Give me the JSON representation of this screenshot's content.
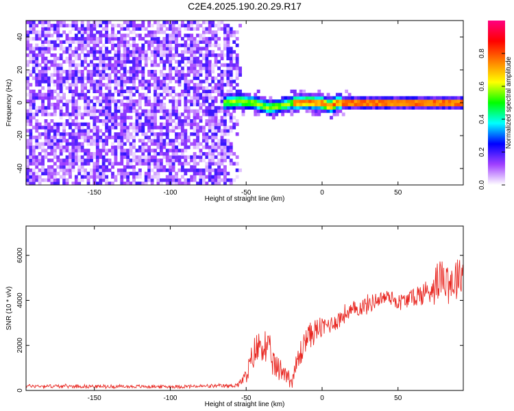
{
  "figure": {
    "title": "C2E4.2025.190.20.29.R17"
  },
  "chart_data": [
    {
      "type": "heatmap",
      "title": "C2E4.2025.190.20.29.R17",
      "xlabel": "Height of straight line (km)",
      "ylabel": "Frequency (Hz)",
      "xlim": [
        -195,
        93
      ],
      "ylim": [
        -50,
        50
      ],
      "x_ticks": [
        -150,
        -100,
        -50,
        0,
        50
      ],
      "y_ticks": [
        -40,
        -20,
        0,
        20,
        40
      ],
      "colorbar": {
        "label": "Normalized spectral amplitude",
        "range": [
          0,
          1
        ],
        "ticks": [
          0.0,
          0.2,
          0.4,
          0.6,
          0.8
        ],
        "tick_labels": [
          "0.0",
          "0.2",
          "0.4",
          "0.6",
          "0.8"
        ],
        "colors": [
          "#ffffff",
          "#a040ff",
          "#0000ff",
          "#00ffff",
          "#00ff00",
          "#ffff00",
          "#ff8000",
          "#ff0000",
          "#ff0080"
        ]
      },
      "regions": [
        {
          "description": "noise",
          "x_range": [
            -195,
            -55
          ],
          "freq_range": [
            -50,
            50
          ],
          "amplitude_range": [
            0.0,
            0.2
          ]
        },
        {
          "description": "signal",
          "x_range": [
            -65,
            93
          ],
          "freq_center": 0,
          "amplitude_range": [
            0.2,
            1.0
          ]
        }
      ],
      "signal_ridge": {
        "x": [
          -65,
          -55,
          -45,
          -35,
          -28,
          -20,
          -10,
          0,
          5,
          10,
          20,
          40,
          60,
          80,
          93
        ],
        "freq": [
          0,
          1,
          0,
          -3,
          -2,
          0,
          0.5,
          0,
          -2,
          0,
          0,
          0,
          0,
          0,
          0
        ]
      }
    },
    {
      "type": "line",
      "xlabel": "Height of straight line (km)",
      "ylabel": "SNR (10 * v/v)",
      "xlim": [
        -195,
        93
      ],
      "ylim": [
        0,
        7300
      ],
      "x_ticks": [
        -150,
        -100,
        -50,
        0,
        50
      ],
      "y_ticks": [
        0,
        2000,
        4000,
        6000
      ],
      "series": [
        {
          "color": "#e8251f",
          "x": [
            -195,
            -150,
            -100,
            -60,
            -55,
            -50,
            -45,
            -40,
            -35,
            -30,
            -25,
            -20,
            -15,
            -10,
            -5,
            0,
            5,
            10,
            15,
            20,
            25,
            30,
            35,
            40,
            45,
            50,
            55,
            60,
            65,
            70,
            75,
            80,
            85,
            93
          ],
          "y": [
            200,
            180,
            170,
            200,
            280,
            600,
            1600,
            2100,
            1700,
            900,
            900,
            400,
            1500,
            2400,
            2600,
            2800,
            2950,
            3100,
            3400,
            3500,
            3700,
            3800,
            4000,
            4100,
            4200,
            3900,
            4000,
            4150,
            4250,
            4400,
            4800,
            5200,
            4800,
            5300
          ],
          "spread": [
            100,
            90,
            90,
            110,
            150,
            450,
            900,
            1100,
            900,
            700,
            700,
            350,
            900,
            700,
            650,
            600,
            500,
            500,
            500,
            500,
            500,
            500,
            450,
            450,
            450,
            450,
            500,
            550,
            650,
            800,
            1000,
            1200,
            1300,
            1000
          ]
        }
      ]
    }
  ]
}
